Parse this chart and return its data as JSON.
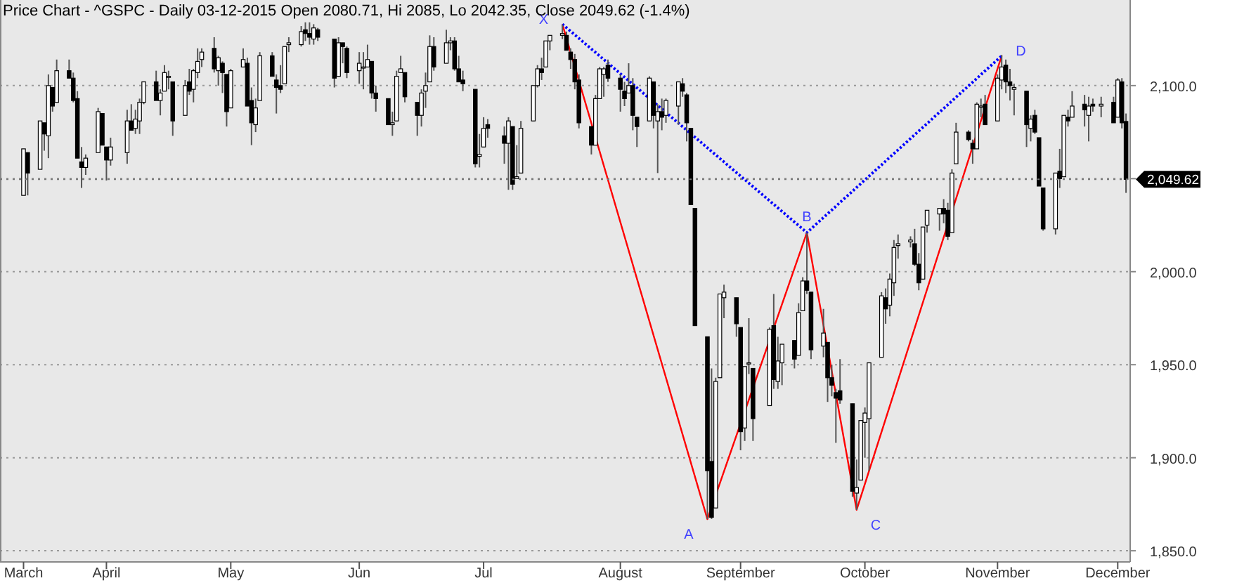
{
  "chart_data": {
    "type": "candlestick",
    "title": "Price Chart - ^GSPC - Daily 03-12-2015 Open 2080.71, Hi 2085, Lo 2042.35, Close 2049.62 (-1.4%)",
    "x": [
      "2015-03-12",
      "2015-03-13",
      "2015-03-16",
      "2015-03-17",
      "2015-03-18",
      "2015-03-19",
      "2015-03-20",
      "2015-03-23",
      "2015-03-24",
      "2015-03-25",
      "2015-03-26",
      "2015-03-27",
      "2015-03-30",
      "2015-03-31",
      "2015-04-01",
      "2015-04-02",
      "2015-04-06",
      "2015-04-07",
      "2015-04-08",
      "2015-04-09",
      "2015-04-10",
      "2015-04-13",
      "2015-04-14",
      "2015-04-15",
      "2015-04-16",
      "2015-04-17",
      "2015-04-20",
      "2015-04-21",
      "2015-04-22",
      "2015-04-23",
      "2015-04-24",
      "2015-04-27",
      "2015-04-28",
      "2015-04-29",
      "2015-04-30",
      "2015-05-01",
      "2015-05-04",
      "2015-05-05",
      "2015-05-06",
      "2015-05-07",
      "2015-05-08",
      "2015-05-11",
      "2015-05-12",
      "2015-05-13",
      "2015-05-14",
      "2015-05-15",
      "2015-05-18",
      "2015-05-19",
      "2015-05-20",
      "2015-05-21",
      "2015-05-22",
      "2015-05-26",
      "2015-05-27",
      "2015-05-28",
      "2015-05-29",
      "2015-06-01",
      "2015-06-02",
      "2015-06-03",
      "2015-06-04",
      "2015-06-05",
      "2015-06-08",
      "2015-06-09",
      "2015-06-10",
      "2015-06-11",
      "2015-06-12",
      "2015-06-15",
      "2015-06-16",
      "2015-06-17",
      "2015-06-18",
      "2015-06-19",
      "2015-06-22",
      "2015-06-23",
      "2015-06-24",
      "2015-06-25",
      "2015-06-26",
      "2015-06-29",
      "2015-06-30",
      "2015-07-01",
      "2015-07-02",
      "2015-07-06",
      "2015-07-07",
      "2015-07-08",
      "2015-07-09",
      "2015-07-10",
      "2015-07-13",
      "2015-07-14",
      "2015-07-15",
      "2015-07-16",
      "2015-07-17",
      "2015-07-20",
      "2015-07-21",
      "2015-07-22",
      "2015-07-23",
      "2015-07-24",
      "2015-07-27",
      "2015-07-28",
      "2015-07-29",
      "2015-07-30",
      "2015-07-31",
      "2015-08-03",
      "2015-08-04",
      "2015-08-05",
      "2015-08-06",
      "2015-08-07",
      "2015-08-10",
      "2015-08-11",
      "2015-08-12",
      "2015-08-13",
      "2015-08-14",
      "2015-08-17",
      "2015-08-18",
      "2015-08-19",
      "2015-08-20",
      "2015-08-21",
      "2015-08-24",
      "2015-08-25",
      "2015-08-26",
      "2015-08-27",
      "2015-08-28",
      "2015-08-31",
      "2015-09-01",
      "2015-09-02",
      "2015-09-03",
      "2015-09-04",
      "2015-09-08",
      "2015-09-09",
      "2015-09-10",
      "2015-09-11",
      "2015-09-14",
      "2015-09-15",
      "2015-09-16",
      "2015-09-17",
      "2015-09-18",
      "2015-09-21",
      "2015-09-22",
      "2015-09-23",
      "2015-09-24",
      "2015-09-25",
      "2015-09-28",
      "2015-09-29",
      "2015-09-30",
      "2015-10-01",
      "2015-10-02",
      "2015-10-05",
      "2015-10-06",
      "2015-10-07",
      "2015-10-08",
      "2015-10-09",
      "2015-10-12",
      "2015-10-13",
      "2015-10-14",
      "2015-10-15",
      "2015-10-16",
      "2015-10-19",
      "2015-10-20",
      "2015-10-21",
      "2015-10-22",
      "2015-10-23",
      "2015-10-26",
      "2015-10-27",
      "2015-10-28",
      "2015-10-29",
      "2015-10-30",
      "2015-11-02",
      "2015-11-03",
      "2015-11-04",
      "2015-11-05",
      "2015-11-06",
      "2015-11-09",
      "2015-11-10",
      "2015-11-11",
      "2015-11-12",
      "2015-11-13",
      "2015-11-16",
      "2015-11-17",
      "2015-11-18",
      "2015-11-19",
      "2015-11-20",
      "2015-11-23",
      "2015-11-24",
      "2015-11-25",
      "2015-11-27",
      "2015-11-30",
      "2015-12-01",
      "2015-12-02",
      "2015-12-03"
    ],
    "ohlc": [
      [
        2041,
        2066,
        2041,
        2066
      ],
      [
        2064,
        2064,
        2041,
        2053
      ],
      [
        2055,
        2081,
        2055,
        2081
      ],
      [
        2080,
        2080,
        2065,
        2074
      ],
      [
        2073,
        2106,
        2061,
        2100
      ],
      [
        2099,
        2099,
        2086,
        2089
      ],
      [
        2091,
        2114,
        2091,
        2108
      ],
      [
        2108,
        2114,
        2104,
        2104
      ],
      [
        2104,
        2107,
        2091,
        2092
      ],
      [
        2093,
        2097,
        2061,
        2061
      ],
      [
        2059,
        2067,
        2045,
        2056
      ],
      [
        2056,
        2063,
        2052,
        2061
      ],
      [
        2064,
        2088,
        2064,
        2086
      ],
      [
        2085,
        2085,
        2068,
        2068
      ],
      [
        2067,
        2067,
        2049,
        2060
      ],
      [
        2060,
        2072,
        2057,
        2067
      ],
      [
        2064,
        2087,
        2058,
        2081
      ],
      [
        2081,
        2090,
        2076,
        2076
      ],
      [
        2077,
        2087,
        2074,
        2082
      ],
      [
        2081,
        2093,
        2074,
        2091
      ],
      [
        2091,
        2102,
        2090,
        2102
      ],
      [
        2102,
        2108,
        2092,
        2092
      ],
      [
        2092,
        2098,
        2084,
        2096
      ],
      [
        2097,
        2111,
        2097,
        2107
      ],
      [
        2105,
        2108,
        2098,
        2105
      ],
      [
        2102,
        2102,
        2073,
        2081
      ],
      [
        2084,
        2103,
        2084,
        2100
      ],
      [
        2102,
        2109,
        2095,
        2097
      ],
      [
        2098,
        2109,
        2091,
        2108
      ],
      [
        2107,
        2120,
        2104,
        2113
      ],
      [
        2114,
        2120,
        2110,
        2118
      ],
      [
        2120,
        2126,
        2107,
        2109
      ],
      [
        2108,
        2116,
        2100,
        2115
      ],
      [
        2112,
        2113,
        2096,
        2107
      ],
      [
        2106,
        2106,
        2078,
        2086
      ],
      [
        2088,
        2109,
        2088,
        2108
      ],
      [
        2110,
        2120,
        2110,
        2114
      ],
      [
        2112,
        2115,
        2089,
        2089
      ],
      [
        2092,
        2099,
        2068,
        2080
      ],
      [
        2079,
        2093,
        2075,
        2088
      ],
      [
        2092,
        2118,
        2092,
        2116
      ],
      [
        2116,
        2118,
        2105,
        2105
      ],
      [
        2103,
        2106,
        2085,
        2099
      ],
      [
        2100,
        2111,
        2096,
        2098
      ],
      [
        2101,
        2121,
        2101,
        2121
      ],
      [
        2122,
        2126,
        2118,
        2123
      ],
      [
        2122,
        2132,
        2121,
        2129
      ],
      [
        2130,
        2134,
        2124,
        2128
      ],
      [
        2128,
        2134,
        2122,
        2126
      ],
      [
        2125,
        2133,
        2122,
        2131
      ],
      [
        2130,
        2131,
        2124,
        2126
      ],
      [
        2125,
        2125,
        2099,
        2104
      ],
      [
        2105,
        2126,
        2105,
        2123
      ],
      [
        2123,
        2123,
        2112,
        2121
      ],
      [
        2120,
        2121,
        2104,
        2107
      ],
      [
        2108,
        2118,
        2101,
        2112
      ],
      [
        2110,
        2118,
        2098,
        2110
      ],
      [
        2110,
        2122,
        2110,
        2114
      ],
      [
        2113,
        2113,
        2093,
        2096
      ],
      [
        2096,
        2100,
        2086,
        2093
      ],
      [
        2093,
        2093,
        2079,
        2079
      ],
      [
        2079,
        2086,
        2073,
        2080
      ],
      [
        2081,
        2108,
        2081,
        2105
      ],
      [
        2107,
        2116,
        2107,
        2109
      ],
      [
        2107,
        2107,
        2091,
        2094
      ],
      [
        2091,
        2091,
        2073,
        2084
      ],
      [
        2084,
        2098,
        2078,
        2096
      ],
      [
        2097,
        2107,
        2088,
        2100
      ],
      [
        2102,
        2127,
        2102,
        2121
      ],
      [
        2121,
        2126,
        2108,
        2110
      ],
      [
        2112,
        2130,
        2112,
        2123
      ],
      [
        2123,
        2126,
        2119,
        2124
      ],
      [
        2124,
        2126,
        2108,
        2109
      ],
      [
        2109,
        2116,
        2102,
        2102
      ],
      [
        2103,
        2108,
        2097,
        2101
      ],
      [
        2098,
        2098,
        2056,
        2058
      ],
      [
        2062,
        2074,
        2056,
        2063
      ],
      [
        2067,
        2083,
        2067,
        2077
      ],
      [
        2079,
        2082,
        2072,
        2077
      ],
      [
        2073,
        2078,
        2058,
        2069
      ],
      [
        2069,
        2083,
        2044,
        2081
      ],
      [
        2078,
        2078,
        2044,
        2047
      ],
      [
        2050,
        2068,
        2050,
        2051
      ],
      [
        2053,
        2081,
        2053,
        2077
      ],
      [
        2081,
        2100,
        2081,
        2100
      ],
      [
        2100,
        2111,
        2099,
        2109
      ],
      [
        2109,
        2115,
        2103,
        2107
      ],
      [
        2110,
        2124,
        2110,
        2124
      ],
      [
        2124,
        2127,
        2119,
        2127
      ],
      [
        2127,
        2132.82,
        2125,
        2128
      ],
      [
        2127,
        2129,
        2119,
        2119
      ],
      [
        2118,
        2120,
        2109,
        2114
      ],
      [
        2114,
        2117,
        2098,
        2102
      ],
      [
        2103,
        2106,
        2077,
        2080
      ],
      [
        2078,
        2078,
        2063,
        2068
      ],
      [
        2068,
        2095,
        2068,
        2093
      ],
      [
        2093,
        2110,
        2093,
        2109
      ],
      [
        2106,
        2110,
        2094,
        2109
      ],
      [
        2111,
        2114,
        2102,
        2104
      ],
      [
        2104,
        2106,
        2086,
        2098
      ],
      [
        2097,
        2102,
        2089,
        2093
      ],
      [
        2096,
        2112,
        2096,
        2100
      ],
      [
        2100,
        2104,
        2076,
        2084
      ],
      [
        2083,
        2083,
        2067,
        2078
      ],
      [
        2081,
        2105,
        2081,
        2104
      ],
      [
        2102,
        2102,
        2077,
        2084
      ],
      [
        2081,
        2090,
        2053,
        2086
      ],
      [
        2086,
        2093,
        2076,
        2083
      ],
      [
        2084,
        2093,
        2080,
        2092
      ],
      [
        2089,
        2102,
        2079,
        2102
      ],
      [
        2101,
        2104,
        2094,
        2097
      ],
      [
        2095,
        2096,
        2070,
        2080
      ],
      [
        2077,
        2077,
        2036,
        2036
      ],
      [
        2034,
        2034,
        1971,
        1971
      ],
      [
        1965,
        1965,
        1867.01,
        1893
      ],
      [
        1898,
        1948,
        1867.08,
        1868
      ],
      [
        1873,
        1943,
        1873,
        1941
      ],
      [
        1943,
        1988,
        1943,
        1988
      ],
      [
        1986,
        1993,
        1975,
        1989
      ],
      [
        1986,
        1986,
        1965,
        1972
      ],
      [
        1970,
        1970,
        1904,
        1914
      ],
      [
        1916,
        1949,
        1909,
        1949
      ],
      [
        1951,
        1975,
        1945,
        1951
      ],
      [
        1948,
        1948,
        1909,
        1921
      ],
      [
        1928,
        1970,
        1928,
        1969
      ],
      [
        1971,
        1988,
        1937,
        1942
      ],
      [
        1941,
        1965,
        1937,
        1952
      ],
      [
        1951,
        1961,
        1939,
        1961
      ],
      [
        1963,
        1963,
        1948,
        1953
      ],
      [
        1955,
        1983,
        1955,
        1978
      ],
      [
        1979,
        1997,
        1979,
        1995
      ],
      [
        1995,
        2020.86,
        1988,
        1990
      ],
      [
        1989,
        1989,
        1953,
        1958
      ],
      [
        1960,
        1980,
        1954,
        1967
      ],
      [
        1962,
        1962,
        1930,
        1943
      ],
      [
        1943,
        1950,
        1933,
        1939
      ],
      [
        1935,
        1937,
        1908,
        1932
      ],
      [
        1936,
        1953,
        1929,
        1931
      ],
      [
        1929,
        1929,
        1879,
        1882
      ],
      [
        1881,
        1899,
        1871.91,
        1884
      ],
      [
        1888,
        1920,
        1888,
        1920
      ],
      [
        1919,
        1927,
        1900,
        1924
      ],
      [
        1921,
        1951,
        1893,
        1951
      ],
      [
        1954,
        1989,
        1954,
        1987
      ],
      [
        1986,
        1991,
        1972,
        1980
      ],
      [
        1982,
        1999,
        1976,
        1996
      ],
      [
        1994,
        2017,
        1987,
        2013
      ],
      [
        2014,
        2020,
        2007,
        2015
      ],
      [
        2016,
        2019,
        2013,
        2017
      ],
      [
        2015,
        2023,
        2003,
        2004
      ],
      [
        2004,
        2010,
        1990,
        1994
      ],
      [
        1996,
        2024,
        1996,
        2024
      ],
      [
        2025,
        2033,
        2021,
        2033
      ],
      [
        2031,
        2034,
        2022,
        2034
      ],
      [
        2034,
        2039,
        2026,
        2031
      ],
      [
        2033,
        2037,
        2017,
        2019
      ],
      [
        2021,
        2055,
        2021,
        2053
      ],
      [
        2058,
        2080,
        2058,
        2075
      ],
      [
        2075,
        2076,
        2070,
        2071
      ],
      [
        2069,
        2071,
        2058,
        2066
      ],
      [
        2066,
        2091,
        2066,
        2090
      ],
      [
        2089,
        2093,
        2083,
        2089
      ],
      [
        2090,
        2095,
        2079,
        2079
      ],
      [
        2081,
        2106,
        2081,
        2104
      ],
      [
        2103,
        2116.48,
        2098,
        2110
      ],
      [
        2111,
        2114,
        2096,
        2102
      ],
      [
        2102,
        2109,
        2092,
        2100
      ],
      [
        2098,
        2101,
        2084,
        2099
      ],
      [
        2097,
        2097,
        2067,
        2079
      ],
      [
        2077,
        2084,
        2070,
        2082
      ],
      [
        2084,
        2087,
        2074,
        2075
      ],
      [
        2072,
        2072,
        2046,
        2046
      ],
      [
        2045,
        2045,
        2022,
        2023
      ],
      [
        2023,
        2053,
        2020,
        2053
      ],
      [
        2054,
        2066,
        2045,
        2050
      ],
      [
        2051,
        2084,
        2051,
        2084
      ],
      [
        2083,
        2087,
        2078,
        2081
      ],
      [
        2083,
        2097,
        2083,
        2089
      ],
      [
        2090,
        2095,
        2078,
        2087
      ],
      [
        2084,
        2094,
        2070,
        2089
      ],
      [
        2090,
        2093,
        2086,
        2089
      ],
      [
        2089,
        2094,
        2083,
        2090
      ],
      [
        2091,
        2094,
        2080,
        2080
      ],
      [
        2083,
        2104,
        2083,
        2103
      ],
      [
        2102,
        2104,
        2077,
        2080
      ],
      [
        2080.71,
        2085,
        2042.35,
        2049.62
      ]
    ],
    "series": [
      {
        "type": "line",
        "color": "#ff0000",
        "line_style": "solid",
        "x": [
          "2015-07-20",
          "2015-08-24",
          "2015-09-17",
          "2015-09-29",
          "2015-11-03"
        ],
        "values": [
          2133,
          1867,
          2021,
          1872,
          2116
        ]
      },
      {
        "type": "line",
        "color": "#0000ff",
        "line_style": "dotted",
        "x": [
          "2015-07-20",
          "2015-09-17",
          "2015-11-03"
        ],
        "values": [
          2133,
          2021,
          2116
        ]
      }
    ],
    "annotations": [
      {
        "text": "X",
        "x": "2015-07-20",
        "y": 2133
      },
      {
        "text": "A",
        "x": "2015-08-24",
        "y": 1867
      },
      {
        "text": "B",
        "x": "2015-09-17",
        "y": 2021
      },
      {
        "text": "C",
        "x": "2015-09-29",
        "y": 1872
      },
      {
        "text": "D",
        "x": "2015-11-03",
        "y": 2116
      }
    ],
    "xlim": [
      "2015-03-07",
      "2015-12-04"
    ],
    "ylim": [
      1844,
      2146
    ],
    "yticks": [
      {
        "value": 1850,
        "label": "1,850.0"
      },
      {
        "value": 1900,
        "label": "1,900.0"
      },
      {
        "value": 1950,
        "label": "1,950.0"
      },
      {
        "value": 2000,
        "label": "2,000.0"
      },
      {
        "value": 2050,
        "label": null
      },
      {
        "value": 2100,
        "label": "2,100.0"
      }
    ],
    "xticks": [
      {
        "value": "2015-03-12",
        "label": "March"
      },
      {
        "value": "2015-04-01",
        "label": "April"
      },
      {
        "value": "2015-05-01",
        "label": "May"
      },
      {
        "value": "2015-06-01",
        "label": "Jun"
      },
      {
        "value": "2015-07-01",
        "label": "Jul"
      },
      {
        "value": "2015-08-03",
        "label": "August"
      },
      {
        "value": "2015-09-01",
        "label": "September"
      },
      {
        "value": "2015-10-01",
        "label": "October"
      },
      {
        "value": "2015-11-02",
        "label": "November"
      },
      {
        "value": "2015-12-01",
        "label": "December"
      }
    ],
    "ref_lines": [
      {
        "axis": "y",
        "value": 2049.62,
        "label": "2,049.62"
      }
    ],
    "grid": "y"
  }
}
